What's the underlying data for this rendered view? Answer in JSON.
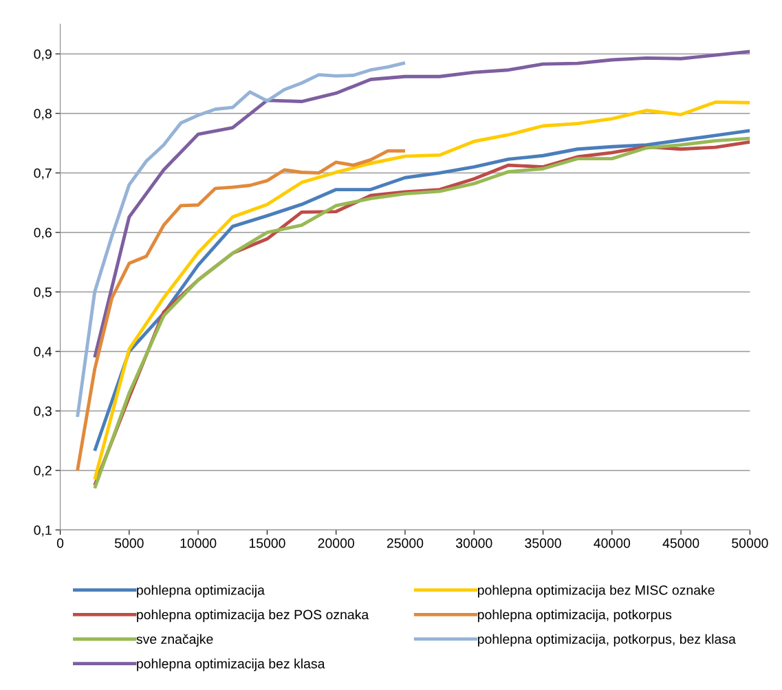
{
  "chart_data": {
    "type": "line",
    "xlim": [
      0,
      50000
    ],
    "ylim": [
      0.1,
      0.95
    ],
    "xticks": [
      0,
      5000,
      10000,
      15000,
      20000,
      25000,
      30000,
      35000,
      40000,
      45000,
      50000
    ],
    "yticks": [
      {
        "value": 0.1,
        "label": "0,1"
      },
      {
        "value": 0.2,
        "label": "0,2"
      },
      {
        "value": 0.3,
        "label": "0,3"
      },
      {
        "value": 0.4,
        "label": "0,4"
      },
      {
        "value": 0.5,
        "label": "0,5"
      },
      {
        "value": 0.6,
        "label": "0,6"
      },
      {
        "value": 0.7,
        "label": "0,7"
      },
      {
        "value": 0.8,
        "label": "0,8"
      },
      {
        "value": 0.9,
        "label": "0,9"
      }
    ],
    "grid": "y",
    "legend": "bottom",
    "marker": "none",
    "line_style": "solid",
    "series": [
      {
        "name": "pohlepna optimizacija",
        "color": "#4a7ebb",
        "x": [
          2500,
          5000,
          7500,
          10000,
          12500,
          15000,
          17500,
          20000,
          22500,
          25000,
          27500,
          30000,
          32500,
          35000,
          37500,
          40000,
          42500,
          45000,
          47500,
          50000
        ],
        "values": [
          0.233,
          0.4,
          0.464,
          0.545,
          0.61,
          0.628,
          0.647,
          0.672,
          0.672,
          0.692,
          0.7,
          0.71,
          0.723,
          0.729,
          0.74,
          0.744,
          0.747,
          0.755,
          0.763,
          0.771
        ]
      },
      {
        "name": "pohlepna optimizacija bez POS oznaka",
        "color": "#be4b48",
        "x": [
          2500,
          5000,
          7500,
          10000,
          12500,
          15000,
          17500,
          20000,
          22500,
          25000,
          27500,
          30000,
          32500,
          35000,
          37500,
          40000,
          42500,
          45000,
          47500,
          50000
        ],
        "values": [
          0.175,
          0.323,
          0.466,
          0.52,
          0.565,
          0.589,
          0.634,
          0.635,
          0.662,
          0.668,
          0.672,
          0.69,
          0.713,
          0.71,
          0.727,
          0.734,
          0.744,
          0.74,
          0.743,
          0.752
        ]
      },
      {
        "name": "sve značajke",
        "color": "#98b954",
        "x": [
          2500,
          5000,
          7500,
          10000,
          12500,
          15000,
          17500,
          20000,
          22500,
          25000,
          27500,
          30000,
          32500,
          35000,
          37500,
          40000,
          42500,
          45000,
          47500,
          50000
        ],
        "values": [
          0.17,
          0.33,
          0.46,
          0.52,
          0.565,
          0.6,
          0.612,
          0.645,
          0.657,
          0.665,
          0.669,
          0.682,
          0.702,
          0.707,
          0.724,
          0.724,
          0.742,
          0.747,
          0.754,
          0.758
        ]
      },
      {
        "name": "pohlepna optimizacija bez klasa",
        "color": "#7d5fa0",
        "x": [
          2500,
          5000,
          7500,
          10000,
          12500,
          15000,
          17500,
          20000,
          22500,
          25000,
          27500,
          30000,
          32500,
          35000,
          37500,
          40000,
          42500,
          45000,
          47500,
          50000
        ],
        "values": [
          0.39,
          0.626,
          0.705,
          0.765,
          0.776,
          0.822,
          0.82,
          0.834,
          0.857,
          0.862,
          0.862,
          0.869,
          0.873,
          0.883,
          0.884,
          0.89,
          0.893,
          0.892,
          0.898,
          0.904
        ]
      },
      {
        "name": "pohlepna optimizacija bez MISC oznake",
        "color": "#ffcc00",
        "x": [
          2500,
          5000,
          7500,
          10000,
          12500,
          15000,
          17500,
          20000,
          22500,
          25000,
          27500,
          30000,
          32500,
          35000,
          37500,
          40000,
          42500,
          45000,
          47500,
          50000
        ],
        "values": [
          0.185,
          0.404,
          0.49,
          0.566,
          0.626,
          0.647,
          0.684,
          0.701,
          0.716,
          0.728,
          0.73,
          0.753,
          0.764,
          0.779,
          0.783,
          0.791,
          0.805,
          0.798,
          0.819,
          0.818
        ]
      },
      {
        "name": "pohlepna optimizacija, potkorpus",
        "color": "#e08a3c",
        "x": [
          1250,
          2500,
          3750,
          5000,
          6250,
          7500,
          8750,
          10000,
          11250,
          12500,
          13750,
          15000,
          16250,
          17500,
          18750,
          20000,
          21250,
          22500,
          23750,
          25000
        ],
        "values": [
          0.2,
          0.37,
          0.49,
          0.548,
          0.56,
          0.612,
          0.645,
          0.646,
          0.674,
          0.676,
          0.679,
          0.687,
          0.705,
          0.701,
          0.7,
          0.718,
          0.713,
          0.722,
          0.737,
          0.737
        ]
      },
      {
        "name": "pohlepna optimizacija, potkorpus, bez klasa",
        "color": "#95b3d7",
        "x": [
          1250,
          2500,
          3750,
          5000,
          6250,
          7500,
          8750,
          10000,
          11250,
          12500,
          13750,
          15000,
          16250,
          17500,
          18750,
          20000,
          21250,
          22500,
          23750,
          25000
        ],
        "values": [
          0.29,
          0.5,
          0.594,
          0.68,
          0.72,
          0.747,
          0.784,
          0.797,
          0.807,
          0.81,
          0.836,
          0.821,
          0.84,
          0.851,
          0.865,
          0.863,
          0.864,
          0.873,
          0.878,
          0.885
        ]
      }
    ]
  }
}
